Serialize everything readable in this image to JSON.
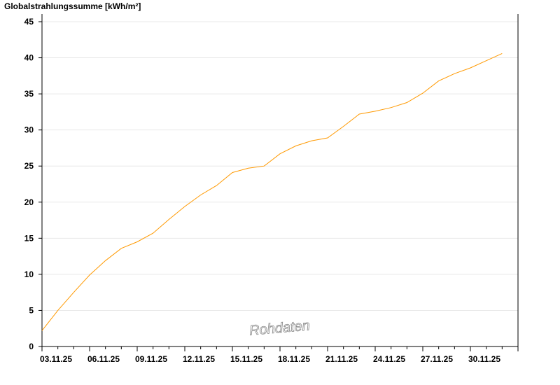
{
  "chart_data": {
    "type": "line",
    "title": "Globalstrahlungssumme [kWh/m²]",
    "watermark": "Rohdaten",
    "x_tick_labels": [
      "03.11.25",
      "06.11.25",
      "09.11.25",
      "12.11.25",
      "15.11.25",
      "18.11.25",
      "21.11.25",
      "24.11.25",
      "27.11.25",
      "30.11.25"
    ],
    "x_range": [
      "03.11.25",
      "03.12.25"
    ],
    "ylim": [
      0,
      45
    ],
    "y_ticks": [
      0,
      5,
      10,
      15,
      20,
      25,
      30,
      35,
      40,
      45
    ],
    "grid": "horizontal",
    "line_color": "#ff9900",
    "series": [
      {
        "x_start": "03.11.25",
        "step_days": 1,
        "values": [
          2.2,
          5.0,
          7.5,
          9.9,
          11.9,
          13.6,
          14.5,
          15.7,
          17.6,
          19.4,
          21.0,
          22.3,
          24.1,
          24.7,
          25.0,
          26.7,
          27.8,
          28.5,
          28.9,
          30.5,
          32.2,
          32.6,
          33.1,
          33.8,
          35.1,
          36.8,
          37.8,
          38.6,
          39.6,
          40.6
        ]
      }
    ]
  }
}
